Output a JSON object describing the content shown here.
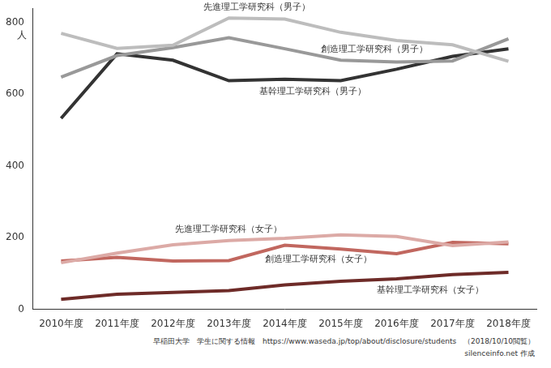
{
  "chart_data": {
    "type": "line",
    "categories": [
      "2010年度",
      "2011年度",
      "2012年度",
      "2013年度",
      "2014年度",
      "2015年度",
      "2016年度",
      "2017年度",
      "2018年度"
    ],
    "series": [
      {
        "name": "先進理工学研究科（男子）",
        "color": "#bdbdbd",
        "values": [
          770,
          728,
          737,
          813,
          810,
          773,
          750,
          738,
          692
        ]
      },
      {
        "name": "創造理工学研究科（男子）",
        "color": "#999999",
        "values": [
          648,
          708,
          730,
          758,
          727,
          695,
          690,
          693,
          755
        ]
      },
      {
        "name": "基幹理工学研究科（男子）",
        "color": "#333333",
        "values": [
          533,
          713,
          695,
          638,
          642,
          638,
          670,
          706,
          727
        ]
      },
      {
        "name": "先進理工学研究科（女子）",
        "color": "#dcaaa6",
        "values": [
          130,
          157,
          180,
          192,
          198,
          208,
          203,
          178,
          188
        ]
      },
      {
        "name": "創造理工学研究科（女子）",
        "color": "#c1675f",
        "values": [
          135,
          145,
          135,
          136,
          179,
          168,
          155,
          187,
          183
        ]
      },
      {
        "name": "基幹理工学研究科（女子）",
        "color": "#6e2b28",
        "values": [
          28,
          42,
          47,
          52,
          68,
          78,
          85,
          97,
          103
        ]
      }
    ],
    "ylim": [
      0,
      840
    ],
    "yticks": [
      0,
      200,
      400,
      600,
      800
    ],
    "y_label": "人",
    "grid": false,
    "source": [
      "早稲田大学　学生に関する情報　https://www.waseda.jp/top/about/disclosure/students　（2018/10/10閲覧）",
      "silenceinfo.net 作成"
    ]
  }
}
